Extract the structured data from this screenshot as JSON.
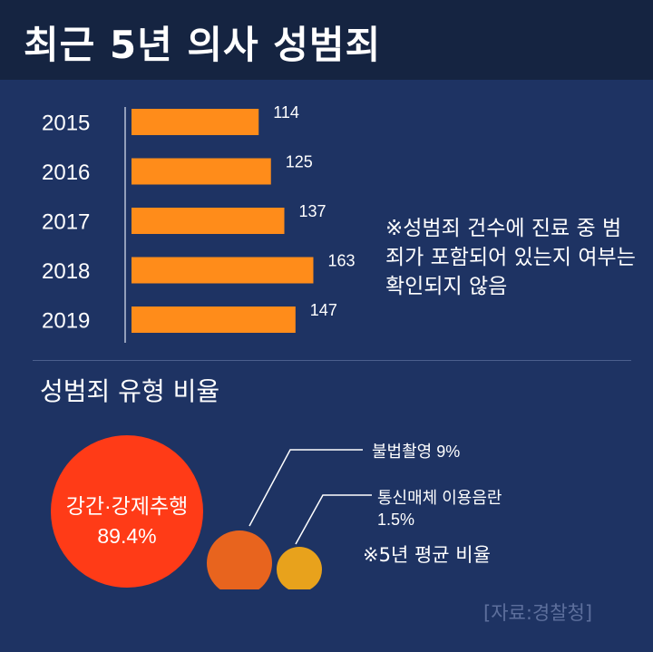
{
  "header": {
    "title": "최근 5년 의사 성범죄"
  },
  "note": "※성범죄 건수에 진료 중 범죄가 포함되어 있는지 여부는 확인되지 않음",
  "section_title": "성범죄 유형 비율",
  "note2": "※5년 평균 비율",
  "source": "[자료:경찰청]",
  "colors": {
    "background": "#1e3363",
    "header": "#152441",
    "bar": "#ff8c1a",
    "bubble_rape": "#ff3b17",
    "bubble_photo": "#e8641e",
    "bubble_media": "#e8a21c"
  },
  "chart_data": [
    {
      "type": "bar",
      "orientation": "horizontal",
      "categories": [
        "2015",
        "2016",
        "2017",
        "2018",
        "2019"
      ],
      "values": [
        114,
        125,
        137,
        163,
        147
      ],
      "title": "최근 5년 의사 성범죄",
      "data_labels": true
    },
    {
      "type": "bubble",
      "title": "성범죄 유형 비율",
      "items": [
        {
          "label": "강간·강제추행",
          "value_label": "89.4%",
          "value": 89.4
        },
        {
          "label": "불법촬영",
          "value_label": "9%",
          "value": 9
        },
        {
          "label": "통신매체 이용음란",
          "value_label": "1.5%",
          "value": 1.5
        }
      ]
    }
  ]
}
